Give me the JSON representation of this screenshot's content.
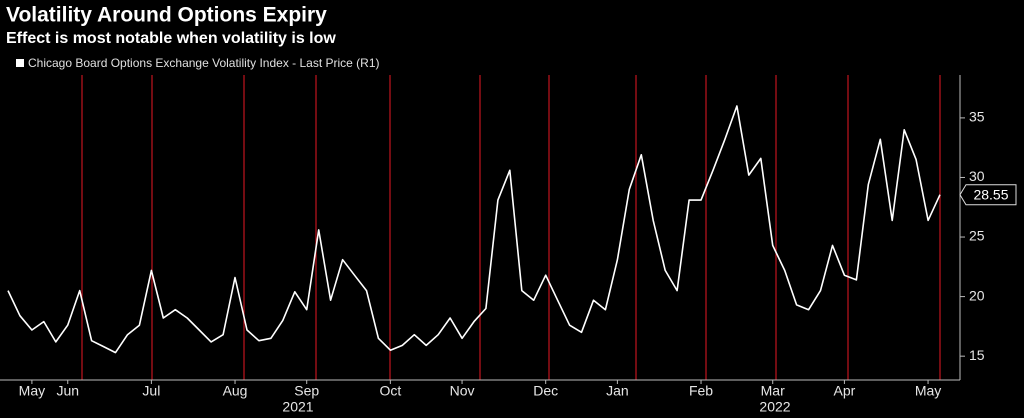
{
  "chart_data": {
    "type": "line",
    "title": "Volatility Around Options Expiry",
    "subtitle": "Effect is most notable when volatility is low",
    "categories": [
      null,
      null,
      "May",
      null,
      null,
      "Jun",
      null,
      null,
      null,
      null,
      null,
      null,
      "Jul",
      null,
      null,
      null,
      null,
      null,
      null,
      "Aug",
      null,
      null,
      null,
      null,
      null,
      "Sep",
      null,
      null,
      null,
      null,
      null,
      null,
      "Oct",
      null,
      null,
      null,
      null,
      null,
      "Nov",
      null,
      null,
      null,
      null,
      null,
      null,
      "Dec",
      null,
      null,
      null,
      null,
      null,
      "Jan",
      null,
      null,
      null,
      null,
      null,
      null,
      "Feb",
      null,
      null,
      null,
      null,
      null,
      "Mar",
      null,
      null,
      null,
      null,
      null,
      "Apr",
      null,
      null,
      null,
      null,
      null,
      null,
      "May",
      null
    ],
    "years": [
      "2021",
      "2022"
    ],
    "series": [
      {
        "name": "Chicago Board Options Exchange Volatility Index - Last Price (R1)",
        "color": "#ffffff",
        "values": [
          20.5,
          18.4,
          17.2,
          17.9,
          16.2,
          17.6,
          20.5,
          16.3,
          15.8,
          15.3,
          16.8,
          17.6,
          22.2,
          18.2,
          18.9,
          18.2,
          17.2,
          16.2,
          16.8,
          21.6,
          17.2,
          16.3,
          16.5,
          18.0,
          20.4,
          18.9,
          25.6,
          19.7,
          23.1,
          21.8,
          20.5,
          16.5,
          15.5,
          15.9,
          16.8,
          15.9,
          16.8,
          18.2,
          16.5,
          17.9,
          19.0,
          28.1,
          30.6,
          20.5,
          19.7,
          21.8,
          19.7,
          17.6,
          17.0,
          19.7,
          18.9,
          23.1,
          29.0,
          31.9,
          26.4,
          22.2,
          20.5,
          28.1,
          28.1,
          30.6,
          33.2,
          36.0,
          30.2,
          31.6,
          24.3,
          22.2,
          19.3,
          18.9,
          20.5,
          24.3,
          21.8,
          21.4,
          29.4,
          33.2,
          26.4,
          34.0,
          31.5,
          26.4,
          28.55
        ]
      }
    ],
    "ylim": [
      13,
      38.6
    ],
    "yticks": [
      15,
      20,
      25,
      30,
      35
    ],
    "grid": false
  }
}
